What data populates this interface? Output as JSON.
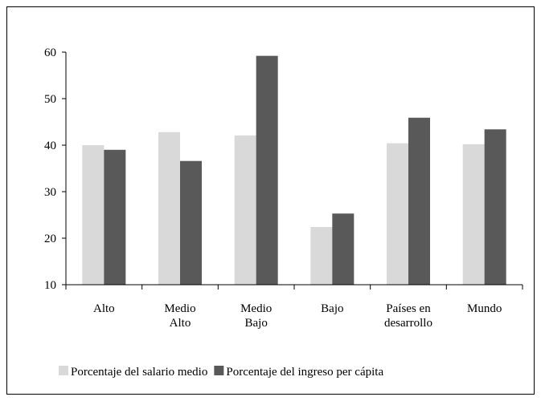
{
  "chart_data": {
    "type": "bar",
    "categories": [
      "Alto",
      "Medio\nAlto",
      "Medio\nBajo",
      "Bajo",
      "Países en\ndesarrollo",
      "Mundo"
    ],
    "series": [
      {
        "name": "Porcentaje del salario medio",
        "color": "#d9d9d9",
        "values": [
          40,
          42.8,
          42.1,
          22.4,
          40.4,
          40.2
        ]
      },
      {
        "name": "Porcentaje del ingreso per cápita",
        "color": "#595959",
        "values": [
          39,
          36.6,
          59.2,
          25.3,
          45.9,
          43.4
        ]
      }
    ],
    "ylim": [
      10,
      60
    ],
    "yticks": [
      10,
      20,
      30,
      40,
      50,
      60
    ],
    "grid": false,
    "legend": "bottom"
  }
}
